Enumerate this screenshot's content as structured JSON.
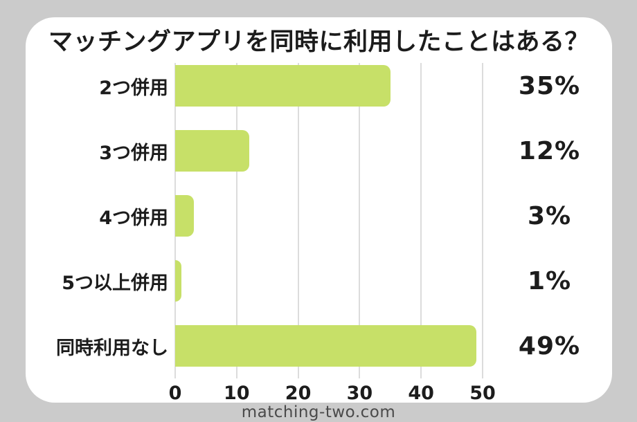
{
  "title": "マッチングアプリを同時に利用したことはある？",
  "footer": "matching-two.com",
  "colors": {
    "background": "#cbcbcb",
    "card": "#ffffff",
    "bar": "#c7e068",
    "gridline": "#dcdcdc",
    "text": "#1c1c1c",
    "footer_text": "#4a4a4a"
  },
  "chart_data": {
    "type": "bar",
    "orientation": "horizontal",
    "title": "マッチングアプリを同時に利用したことはある？",
    "categories": [
      "2つ併用",
      "3つ併用",
      "4つ併用",
      "5つ以上併用",
      "同時利用なし"
    ],
    "values": [
      35,
      12,
      3,
      1,
      49
    ],
    "value_labels": [
      "35%",
      "12%",
      "3%",
      "1%",
      "49%"
    ],
    "unit": "%",
    "xlim": [
      0,
      50
    ],
    "x_ticks": [
      0,
      10,
      20,
      30,
      40,
      50
    ],
    "grid": true,
    "legend": "none",
    "value_label_position": "right-of-plot"
  }
}
